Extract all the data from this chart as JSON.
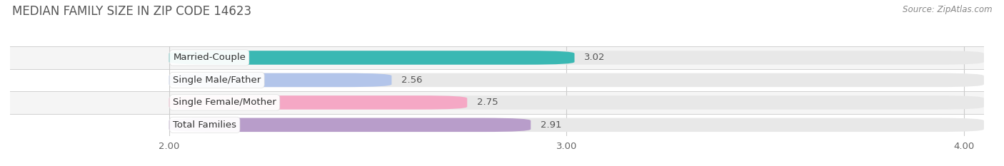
{
  "title": "MEDIAN FAMILY SIZE IN ZIP CODE 14623",
  "source": "Source: ZipAtlas.com",
  "categories": [
    "Married-Couple",
    "Single Male/Father",
    "Single Female/Mother",
    "Total Families"
  ],
  "values": [
    3.02,
    2.56,
    2.75,
    2.91
  ],
  "colors": [
    "#3ab8b3",
    "#b3c5ea",
    "#f5a8c5",
    "#b89dca"
  ],
  "bar_bg_color": "#e8e8e8",
  "xmin": 2.0,
  "xlim": [
    1.6,
    4.05
  ],
  "xticks": [
    2.0,
    3.0,
    4.0
  ],
  "xtick_labels": [
    "2.00",
    "3.00",
    "4.00"
  ],
  "bar_height": 0.62,
  "label_fontsize": 9.5,
  "value_fontsize": 9.5,
  "title_fontsize": 12,
  "title_color": "#555555",
  "background_color": "#ffffff",
  "row_colors": [
    "#f5f5f5",
    "#ffffff",
    "#f5f5f5",
    "#ffffff"
  ]
}
